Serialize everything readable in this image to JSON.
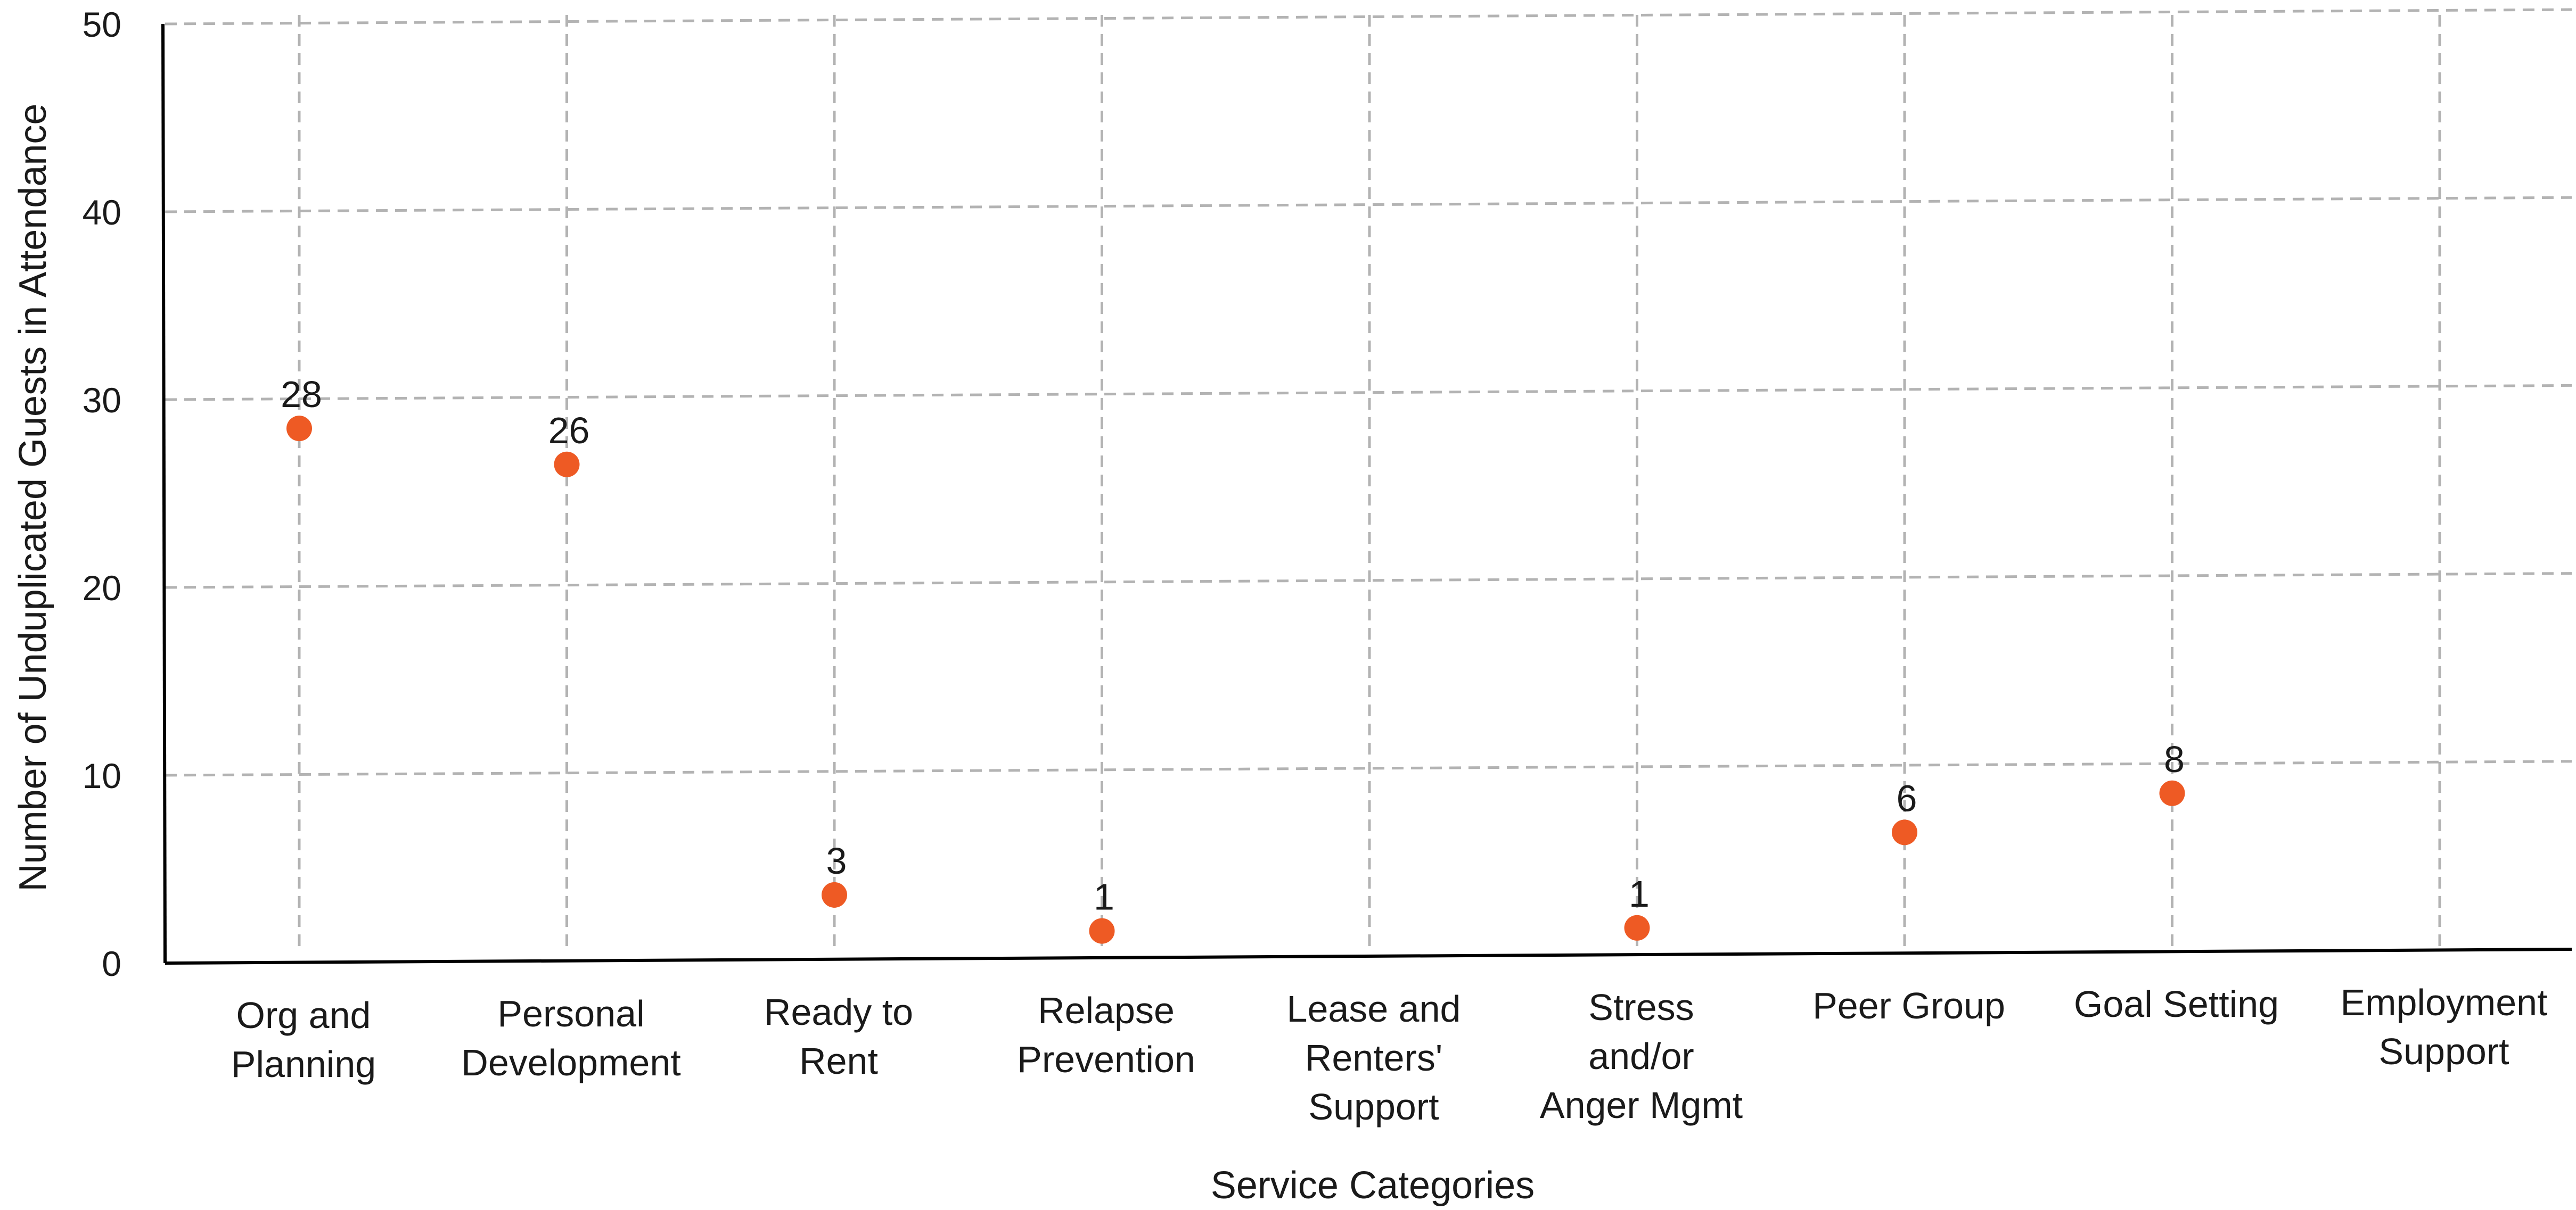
{
  "chart_data": {
    "type": "scatter",
    "title": "",
    "xlabel": "Service Categories",
    "ylabel": "Number of Unduplicated Guests in Attendance",
    "ylim": [
      0,
      50
    ],
    "yticks": [
      0,
      10,
      20,
      30,
      40,
      50
    ],
    "grid": true,
    "legend": "none",
    "categories": [
      [
        "Org and",
        "Planning"
      ],
      [
        "Personal",
        "Development"
      ],
      [
        "Ready to",
        "Rent"
      ],
      [
        "Relapse",
        "Prevention"
      ],
      [
        "Lease and",
        "Renters'",
        "Support"
      ],
      [
        "Stress",
        "and/or",
        "Anger Mgmt"
      ],
      [
        "Peer Group"
      ],
      [
        "Goal Setting"
      ],
      [
        "Employment",
        "Support"
      ]
    ],
    "series": [
      {
        "values": [
          28,
          26,
          3,
          1,
          null,
          1,
          6,
          8,
          null
        ],
        "labels": [
          "28",
          "26",
          "3",
          "1",
          "",
          "1",
          "6",
          "8",
          ""
        ]
      }
    ],
    "marker_color": "#ee5a24"
  }
}
